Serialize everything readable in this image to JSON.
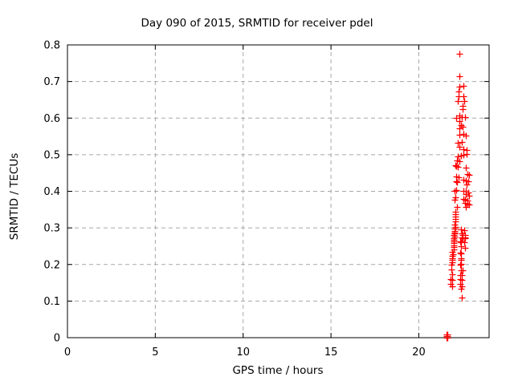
{
  "page": {
    "background": "#ffffff"
  },
  "colors": {
    "marker": "#ff0000",
    "axis": "#000000",
    "grid": "#a8a8a8",
    "text": "#000000"
  },
  "chart_data": {
    "type": "scatter",
    "title": "Day 090 of 2015, SRMTID for receiver pdel",
    "xlabel": "GPS time / hours",
    "ylabel": "SRMTID / TECUs",
    "xlim": [
      0,
      24
    ],
    "ylim": [
      0,
      0.8
    ],
    "xticks": [
      0,
      5,
      10,
      15,
      20
    ],
    "xtick_labels": [
      "0",
      "5",
      "10",
      "15",
      "20"
    ],
    "yticks": [
      0,
      0.1,
      0.2,
      0.3,
      0.4,
      0.5,
      0.6,
      0.7,
      0.8
    ],
    "ytick_labels": [
      "0",
      "0.1",
      "0.2",
      "0.3",
      "0.4",
      "0.5",
      "0.6",
      "0.7",
      "0.8"
    ],
    "grid": true,
    "grid_style": "dashed",
    "legend_position": "none",
    "marker": "plus",
    "marker_color": "#ff0000",
    "marker_size_px": 8,
    "series": [
      {
        "name": "SRMTID",
        "points": [
          [
            22.32,
            0.775
          ],
          [
            22.31,
            0.715
          ],
          [
            22.3,
            0.686
          ],
          [
            22.54,
            0.688
          ],
          [
            22.28,
            0.672
          ],
          [
            22.26,
            0.66
          ],
          [
            22.52,
            0.66
          ],
          [
            22.23,
            0.646
          ],
          [
            22.58,
            0.646
          ],
          [
            22.48,
            0.633
          ],
          [
            22.48,
            0.624
          ],
          [
            22.29,
            0.607
          ],
          [
            22.12,
            0.6
          ],
          [
            22.45,
            0.602
          ],
          [
            22.65,
            0.603
          ],
          [
            22.33,
            0.592
          ],
          [
            22.3,
            0.572
          ],
          [
            22.42,
            0.58
          ],
          [
            22.5,
            0.576
          ],
          [
            22.3,
            0.555
          ],
          [
            22.55,
            0.557
          ],
          [
            22.67,
            0.552
          ],
          [
            22.21,
            0.533
          ],
          [
            22.44,
            0.535
          ],
          [
            22.32,
            0.522
          ],
          [
            22.54,
            0.516
          ],
          [
            22.73,
            0.512
          ],
          [
            22.23,
            0.495
          ],
          [
            22.38,
            0.497
          ],
          [
            22.55,
            0.499
          ],
          [
            22.73,
            0.502
          ],
          [
            22.15,
            0.485
          ],
          [
            22.3,
            0.482
          ],
          [
            22.08,
            0.471
          ],
          [
            22.12,
            0.469
          ],
          [
            22.22,
            0.467
          ],
          [
            22.69,
            0.465
          ],
          [
            22.77,
            0.448
          ],
          [
            22.84,
            0.444
          ],
          [
            22.11,
            0.441
          ],
          [
            22.26,
            0.438
          ],
          [
            22.13,
            0.427
          ],
          [
            22.17,
            0.425
          ],
          [
            22.54,
            0.431
          ],
          [
            22.69,
            0.43
          ],
          [
            22.8,
            0.428
          ],
          [
            22.73,
            0.419
          ],
          [
            22.11,
            0.404
          ],
          [
            22.02,
            0.402
          ],
          [
            22.54,
            0.401
          ],
          [
            22.69,
            0.402
          ],
          [
            22.8,
            0.397
          ],
          [
            22.69,
            0.392
          ],
          [
            22.84,
            0.389
          ],
          [
            22.07,
            0.383
          ],
          [
            22.02,
            0.378
          ],
          [
            22.54,
            0.38
          ],
          [
            22.65,
            0.376
          ],
          [
            22.77,
            0.374
          ],
          [
            22.65,
            0.369
          ],
          [
            22.77,
            0.366
          ],
          [
            22.84,
            0.363
          ],
          [
            22.15,
            0.357
          ],
          [
            22.67,
            0.357
          ],
          [
            22.08,
            0.345
          ],
          [
            22.07,
            0.338
          ],
          [
            22.08,
            0.331
          ],
          [
            22.06,
            0.324
          ],
          [
            22.07,
            0.317
          ],
          [
            22.05,
            0.31
          ],
          [
            22.06,
            0.303
          ],
          [
            22.03,
            0.297
          ],
          [
            22.04,
            0.292
          ],
          [
            22.02,
            0.288
          ],
          [
            22.03,
            0.284
          ],
          [
            22.01,
            0.28
          ],
          [
            22.02,
            0.276
          ],
          [
            22.0,
            0.272
          ],
          [
            22.01,
            0.268
          ],
          [
            21.99,
            0.264
          ],
          [
            22.0,
            0.259
          ],
          [
            21.98,
            0.253
          ],
          [
            21.99,
            0.247
          ],
          [
            21.97,
            0.241
          ],
          [
            21.9,
            0.234
          ],
          [
            21.92,
            0.229
          ],
          [
            21.89,
            0.223
          ],
          [
            21.9,
            0.218
          ],
          [
            21.88,
            0.212
          ],
          [
            21.89,
            0.205
          ],
          [
            21.87,
            0.199
          ],
          [
            21.86,
            0.187
          ],
          [
            21.88,
            0.174
          ],
          [
            21.79,
            0.161
          ],
          [
            21.88,
            0.158
          ],
          [
            21.79,
            0.147
          ],
          [
            21.88,
            0.14
          ],
          [
            22.4,
            0.295
          ],
          [
            22.45,
            0.284
          ],
          [
            22.48,
            0.281
          ],
          [
            22.44,
            0.275
          ],
          [
            22.48,
            0.271
          ],
          [
            22.35,
            0.264
          ],
          [
            22.38,
            0.26
          ],
          [
            22.42,
            0.249
          ],
          [
            22.35,
            0.232
          ],
          [
            22.42,
            0.231
          ],
          [
            22.38,
            0.218
          ],
          [
            22.42,
            0.212
          ],
          [
            22.4,
            0.202
          ],
          [
            22.37,
            0.199
          ],
          [
            22.38,
            0.185
          ],
          [
            22.48,
            0.185
          ],
          [
            22.37,
            0.172
          ],
          [
            22.45,
            0.17
          ],
          [
            22.37,
            0.16
          ],
          [
            22.45,
            0.158
          ],
          [
            22.37,
            0.147
          ],
          [
            22.45,
            0.14
          ],
          [
            22.4,
            0.133
          ],
          [
            22.45,
            0.11
          ],
          [
            22.6,
            0.293
          ],
          [
            22.65,
            0.281
          ],
          [
            22.62,
            0.275
          ],
          [
            22.65,
            0.271
          ],
          [
            22.58,
            0.26
          ],
          [
            22.62,
            0.245
          ],
          [
            21.58,
            0.0
          ],
          [
            21.6,
            0.0
          ],
          [
            21.62,
            0.0
          ],
          [
            21.58,
            0.004
          ],
          [
            21.6,
            0.004
          ],
          [
            21.62,
            0.004
          ],
          [
            21.59,
            0.008
          ],
          [
            21.61,
            0.008
          ]
        ]
      }
    ]
  }
}
